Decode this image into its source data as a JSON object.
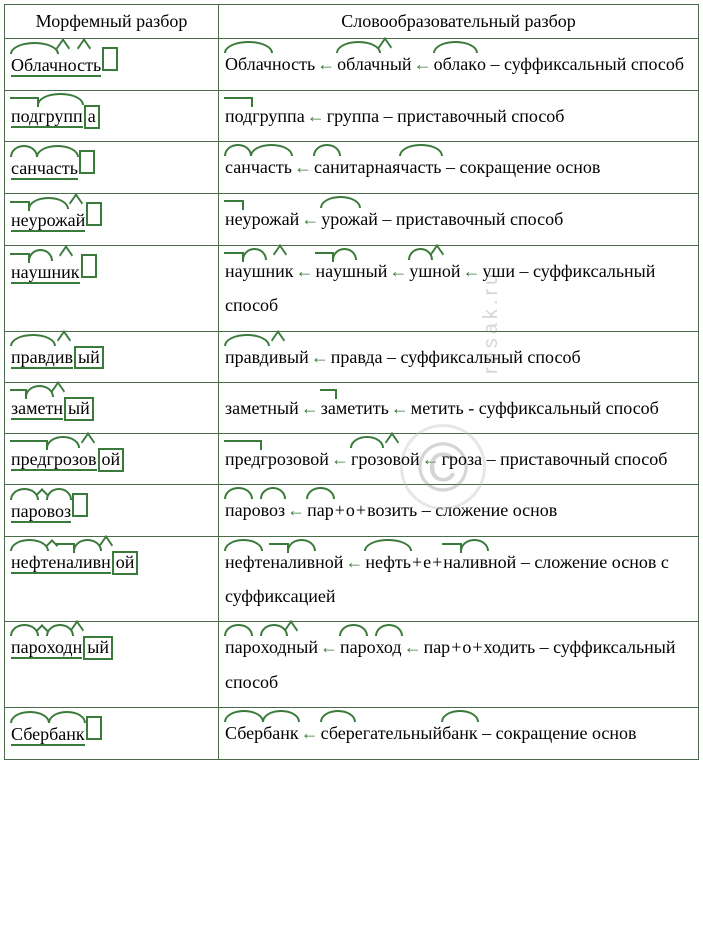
{
  "header": {
    "col1": "Морфемный разбор",
    "col2": "Словообразовательный разбор"
  },
  "colors": {
    "morpheme": "#3a7a3a",
    "border": "#4a6a4a",
    "text": "#000000",
    "background": "#ffffff"
  },
  "typography": {
    "font_family": "Times New Roman",
    "font_size_pt": 14,
    "line_height": 1.9
  },
  "arrow_glyph": "←",
  "watermark": {
    "symbol": "©",
    "text": "resak.ru"
  },
  "rows": [
    {
      "morphemic": {
        "stem": [
          {
            "t": "Облач",
            "k": "root"
          },
          {
            "t": "н",
            "k": "suf"
          },
          {
            "t": "ость",
            "k": "suf"
          }
        ],
        "ending": ""
      },
      "derivation": {
        "chain": [
          [
            {
              "t": "Облач",
              "k": "root"
            },
            {
              "t": "ность",
              "k": "plain"
            }
          ],
          [
            {
              "t": "облач",
              "k": "root"
            },
            {
              "t": "н",
              "k": "suf"
            },
            {
              "t": "ый",
              "k": "plain"
            }
          ],
          [
            {
              "t": "облак",
              "k": "root"
            },
            {
              "t": "о",
              "k": "plain"
            }
          ]
        ],
        "tail": " – суффиксальный способ"
      }
    },
    {
      "morphemic": {
        "stem": [
          {
            "t": "под",
            "k": "pre"
          },
          {
            "t": "групп",
            "k": "root"
          }
        ],
        "ending": "а"
      },
      "derivation": {
        "chain": [
          [
            {
              "t": "под",
              "k": "pre"
            },
            {
              "t": "группа",
              "k": "plain"
            }
          ],
          [
            {
              "t": "группа",
              "k": "plain"
            }
          ]
        ],
        "tail": " – приставочный способ"
      }
    },
    {
      "morphemic": {
        "stem": [
          {
            "t": "сан",
            "k": "root"
          },
          {
            "t": "часть",
            "k": "root"
          }
        ],
        "ending": ""
      },
      "derivation": {
        "chain": [
          [
            {
              "t": "сан",
              "k": "root"
            },
            {
              "t": "часть",
              "k": "root"
            }
          ],
          [
            {
              "t": "сан",
              "k": "root"
            },
            {
              "t": "итарная ",
              "k": "plain"
            },
            {
              "t": "часть",
              "k": "root"
            }
          ]
        ],
        "tail": " – сокращение основ"
      }
    },
    {
      "morphemic": {
        "stem": [
          {
            "t": "не",
            "k": "pre"
          },
          {
            "t": "урож",
            "k": "root"
          },
          {
            "t": "ай",
            "k": "suf"
          }
        ],
        "ending": ""
      },
      "derivation": {
        "chain": [
          [
            {
              "t": "не",
              "k": "pre"
            },
            {
              "t": "урожай",
              "k": "plain"
            }
          ],
          [
            {
              "t": "  урож",
              "k": "root"
            },
            {
              "t": "ай",
              "k": "plain"
            }
          ]
        ],
        "tail": " – приставочный способ"
      }
    },
    {
      "morphemic": {
        "stem": [
          {
            "t": "на",
            "k": "pre"
          },
          {
            "t": "уш",
            "k": "root"
          },
          {
            "t": "ник",
            "k": "suf"
          }
        ],
        "ending": ""
      },
      "derivation": {
        "chain": [
          [
            {
              "t": "на",
              "k": "pre"
            },
            {
              "t": "уш",
              "k": "root"
            },
            {
              "t": "ник",
              "k": "suf"
            }
          ],
          [
            {
              "t": "на",
              "k": "pre"
            },
            {
              "t": "уш",
              "k": "root"
            },
            {
              "t": "ный",
              "k": "plain"
            }
          ],
          [
            {
              "t": "уш",
              "k": "root"
            },
            {
              "t": "н",
              "k": "suf"
            },
            {
              "t": "ой",
              "k": "plain"
            }
          ],
          [
            {
              "t": "уши",
              "k": "plain"
            }
          ]
        ],
        "tail": " – суффиксальный способ"
      }
    },
    {
      "morphemic": {
        "stem": [
          {
            "t": "правд",
            "k": "root"
          },
          {
            "t": "ив",
            "k": "suf"
          }
        ],
        "ending": "ый"
      },
      "derivation": {
        "chain": [
          [
            {
              "t": "правд",
              "k": "root"
            },
            {
              "t": "ив",
              "k": "suf"
            },
            {
              "t": "ый",
              "k": "plain"
            }
          ],
          [
            {
              "t": " правда",
              "k": "plain"
            }
          ]
        ],
        "tail": " – суффиксальный способ"
      }
    },
    {
      "morphemic": {
        "stem": [
          {
            "t": "за",
            "k": "pre"
          },
          {
            "t": "мет",
            "k": "root"
          },
          {
            "t": "н",
            "k": "suf"
          }
        ],
        "ending": "ый"
      },
      "derivation": {
        "chain": [
          [
            {
              "t": "заметный",
              "k": "plain"
            }
          ],
          [
            {
              "t": " за",
              "k": "pre"
            },
            {
              "t": "метить",
              "k": "plain"
            }
          ],
          [
            {
              "t": " метить",
              "k": "plain"
            }
          ]
        ],
        "tail": " - суффиксальный способ"
      }
    },
    {
      "morphemic": {
        "stem": [
          {
            "t": "пред",
            "k": "pre"
          },
          {
            "t": "гроз",
            "k": "root"
          },
          {
            "t": "ов",
            "k": "suf"
          }
        ],
        "ending": "ой"
      },
      "derivation": {
        "chain": [
          [
            {
              "t": "пред",
              "k": "pre"
            },
            {
              "t": "грозовой",
              "k": "plain"
            }
          ],
          [
            {
              "t": " гроз",
              "k": "root"
            },
            {
              "t": "ов",
              "k": "suf"
            },
            {
              "t": "ой",
              "k": "plain"
            }
          ],
          [
            {
              "t": "гроза",
              "k": "plain"
            }
          ]
        ],
        "tail": " – приставочный способ"
      }
    },
    {
      "morphemic": {
        "stem": [
          {
            "t": "пар",
            "k": "root"
          },
          {
            "t": "о",
            "k": "inf"
          },
          {
            "t": "воз",
            "k": "root"
          }
        ],
        "ending": ""
      },
      "derivation": {
        "chain": [
          [
            {
              "t": "пар",
              "k": "root"
            },
            {
              "t": "о",
              "k": "plain"
            },
            {
              "t": "воз",
              "k": "root"
            }
          ],
          [
            {
              "t": "пар",
              "k": "root",
              "plus_after": true
            },
            {
              "t": "о",
              "k": "plain",
              "plus_after": true
            },
            {
              "t": "возить",
              "k": "plain"
            }
          ]
        ],
        "tail": " – сложение основ"
      }
    },
    {
      "morphemic": {
        "stem": [
          {
            "t": "нефт",
            "k": "root"
          },
          {
            "t": "е",
            "k": "inf"
          },
          {
            "t": "на",
            "k": "pre"
          },
          {
            "t": "лив",
            "k": "root"
          },
          {
            "t": "н",
            "k": "suf"
          }
        ],
        "ending": "ой"
      },
      "derivation": {
        "chain": [
          [
            {
              "t": "нефт",
              "k": "root"
            },
            {
              "t": "е",
              "k": "plain"
            },
            {
              "t": "на",
              "k": "pre"
            },
            {
              "t": "лив",
              "k": "root"
            },
            {
              "t": "ной",
              "k": "plain"
            }
          ],
          [
            {
              "t": "нефть",
              "k": "root",
              "plus_after": true
            },
            {
              "t": "е",
              "k": "plain",
              "plus_after": true
            },
            {
              "t": "на",
              "k": "pre"
            },
            {
              "t": "лив",
              "k": "root"
            },
            {
              "t": "ной",
              "k": "plain"
            }
          ]
        ],
        "tail": " – сложение основ с суффиксацией"
      }
    },
    {
      "morphemic": {
        "stem": [
          {
            "t": "пар",
            "k": "root"
          },
          {
            "t": "о",
            "k": "inf"
          },
          {
            "t": "ход",
            "k": "root"
          },
          {
            "t": "н",
            "k": "suf"
          }
        ],
        "ending": "ый"
      },
      "derivation": {
        "chain": [
          [
            {
              "t": "пар",
              "k": "root"
            },
            {
              "t": "о",
              "k": "plain"
            },
            {
              "t": "ход",
              "k": "root"
            },
            {
              "t": "н",
              "k": "suf"
            },
            {
              "t": "ый",
              "k": "plain"
            }
          ],
          [
            {
              "t": "пар",
              "k": "root"
            },
            {
              "t": "о",
              "k": "plain"
            },
            {
              "t": "ход",
              "k": "root"
            }
          ],
          [
            {
              "t": "пар",
              "k": "plain",
              "plus_after": true
            },
            {
              "t": "о",
              "k": "plain",
              "plus_after": true
            },
            {
              "t": "ходить",
              "k": "plain"
            }
          ]
        ],
        "tail": " – суффиксальный способ"
      }
    },
    {
      "morphemic": {
        "stem": [
          {
            "t": "Сбер",
            "k": "root"
          },
          {
            "t": "банк",
            "k": "root"
          }
        ],
        "ending": ""
      },
      "derivation": {
        "chain": [
          [
            {
              "t": "Сбер",
              "k": "root"
            },
            {
              "t": "банк",
              "k": "root"
            }
          ],
          [
            {
              "t": "сбер",
              "k": "root"
            },
            {
              "t": "егательный ",
              "k": "plain"
            },
            {
              "t": "банк",
              "k": "root"
            }
          ]
        ],
        "tail": " – сокращение основ"
      }
    }
  ]
}
